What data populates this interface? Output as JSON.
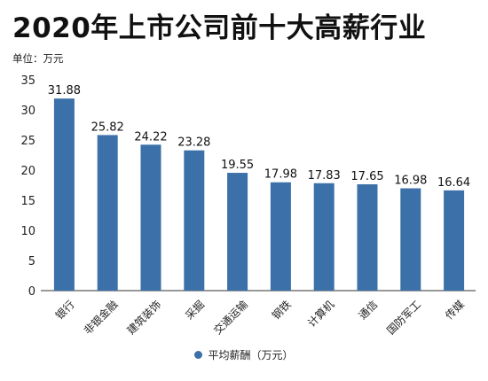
{
  "title": "2020年上市公司前十大高薪行业",
  "unit_label": "单位：万元",
  "chart_data": {
    "type": "bar",
    "categories": [
      "银行",
      "非银金融",
      "建筑装饰",
      "采掘",
      "交通运输",
      "钢铁",
      "计算机",
      "通信",
      "国防军工",
      "传媒"
    ],
    "series": [
      {
        "name": "平均薪酬（万元）",
        "values": [
          31.88,
          25.82,
          24.22,
          23.28,
          19.55,
          17.98,
          17.83,
          17.65,
          16.98,
          16.64
        ],
        "labels": [
          "31.88",
          "25.82",
          "24.22",
          "23.28",
          "19.55",
          "17.98",
          "17.83",
          "17.65",
          "16.98",
          "16.64"
        ]
      }
    ],
    "ylim": [
      0,
      35
    ],
    "yticks": [
      "0",
      "5",
      "10",
      "15",
      "20",
      "25",
      "30",
      "35"
    ],
    "bar_color": "#3b71a8",
    "grid": false,
    "legend_position": "bottom"
  }
}
